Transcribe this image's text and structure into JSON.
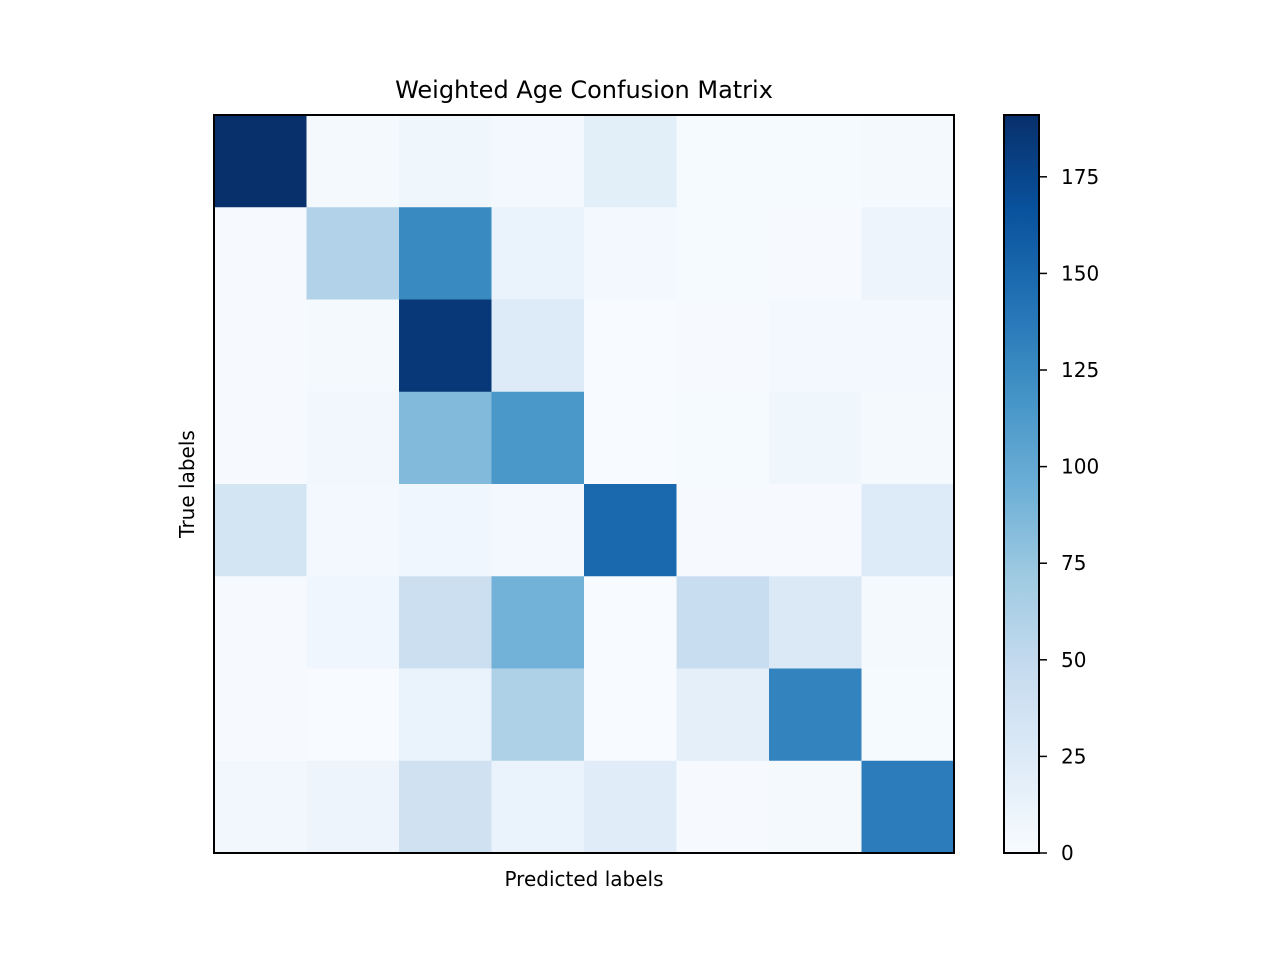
{
  "chart_data": {
    "type": "heatmap",
    "title": "Weighted Age Confusion Matrix",
    "xlabel": "Predicted labels",
    "ylabel": "True labels",
    "rows": 8,
    "cols": 8,
    "x_tick_labels": [],
    "y_tick_labels": [],
    "colormap": "Blues",
    "color_range": [
      0,
      191
    ],
    "colorbar_ticks": [
      0,
      25,
      50,
      75,
      100,
      125,
      150,
      175
    ],
    "values": [
      [
        191,
        3,
        8,
        4,
        20,
        2,
        2,
        3
      ],
      [
        1,
        60,
        125,
        12,
        5,
        2,
        1,
        10
      ],
      [
        1,
        3,
        185,
        25,
        0,
        1,
        5,
        5
      ],
      [
        1,
        6,
        85,
        115,
        0,
        2,
        8,
        3
      ],
      [
        35,
        5,
        7,
        5,
        150,
        1,
        1,
        25
      ],
      [
        1,
        7,
        42,
        92,
        0,
        45,
        27,
        3
      ],
      [
        1,
        0,
        12,
        62,
        0,
        18,
        130,
        2
      ],
      [
        6,
        10,
        38,
        12,
        22,
        1,
        3,
        135
      ]
    ]
  }
}
